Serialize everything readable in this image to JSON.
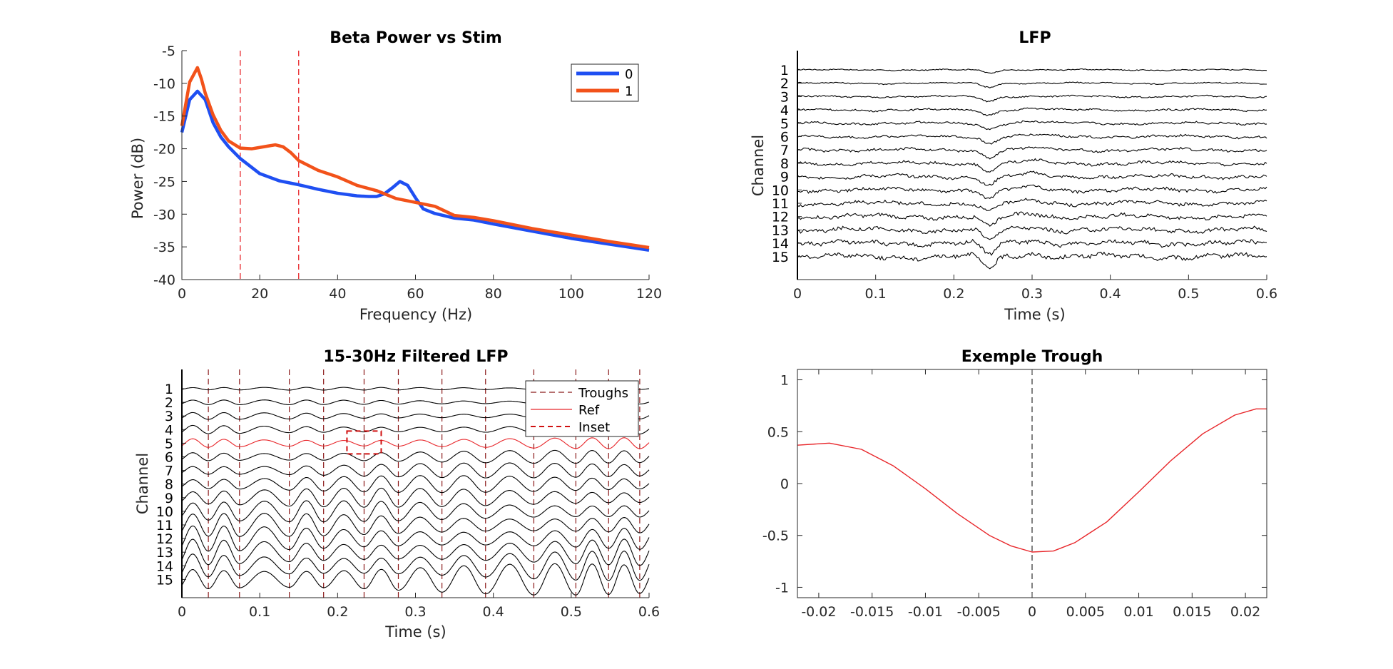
{
  "chart_data": [
    {
      "id": "psd",
      "type": "line",
      "title": "Beta Power vs Stim",
      "xlabel": "Frequency (Hz)",
      "ylabel": "Power (dB)",
      "xlim": [
        0,
        120
      ],
      "ylim": [
        -40,
        -5
      ],
      "xticks": [
        0,
        20,
        40,
        60,
        80,
        100,
        120
      ],
      "yticks": [
        -40,
        -35,
        -30,
        -25,
        -20,
        -15,
        -10,
        -5
      ],
      "grid": false,
      "legend_position": "top-right",
      "vlines": [
        15,
        30
      ],
      "vline_color": "#e8262a",
      "series": [
        {
          "name": "0",
          "color": "#1f4ff2",
          "x": [
            0,
            2,
            4,
            6,
            8,
            10,
            12,
            15,
            20,
            25,
            30,
            35,
            40,
            45,
            48,
            50,
            52,
            54,
            56,
            58,
            60,
            62,
            65,
            70,
            75,
            80,
            90,
            100,
            110,
            120
          ],
          "y": [
            -17.5,
            -12.5,
            -11.2,
            -12.5,
            -16,
            -18.2,
            -19.7,
            -21.5,
            -23.8,
            -24.9,
            -25.5,
            -26.2,
            -26.8,
            -27.2,
            -27.3,
            -27.3,
            -26.9,
            -26,
            -25,
            -25.6,
            -27.5,
            -29.2,
            -29.9,
            -30.6,
            -30.9,
            -31.5,
            -32.6,
            -33.7,
            -34.6,
            -35.5
          ]
        },
        {
          "name": "1",
          "color": "#f2521a",
          "x": [
            0,
            2,
            3,
            4,
            5,
            6,
            8,
            10,
            12,
            15,
            18,
            20,
            22,
            24,
            26,
            28,
            30,
            35,
            40,
            45,
            50,
            55,
            60,
            65,
            70,
            75,
            80,
            90,
            100,
            110,
            120
          ],
          "y": [
            -16.5,
            -9.8,
            -8.7,
            -7.6,
            -9.3,
            -11.5,
            -14.8,
            -17.2,
            -18.8,
            -19.9,
            -20,
            -19.8,
            -19.6,
            -19.4,
            -19.7,
            -20.6,
            -21.8,
            -23.3,
            -24.3,
            -25.6,
            -26.4,
            -27.6,
            -28.2,
            -28.8,
            -30.2,
            -30.5,
            -31,
            -32.2,
            -33.2,
            -34.2,
            -35.1
          ]
        }
      ]
    },
    {
      "id": "lfp",
      "type": "line",
      "title": "LFP",
      "xlabel": "Time (s)",
      "ylabel": "Channel",
      "xlim": [
        0,
        0.6
      ],
      "xticks": [
        0,
        0.1,
        0.2,
        0.3,
        0.4,
        0.5,
        0.6
      ],
      "channels": [
        "1",
        "2",
        "3",
        "4",
        "5",
        "6",
        "7",
        "8",
        "9",
        "10",
        "11",
        "12",
        "13",
        "14",
        "15"
      ],
      "trace_color": "#000000"
    },
    {
      "id": "filtered",
      "type": "line",
      "title": "15-30Hz Filtered LFP",
      "xlabel": "Time (s)",
      "ylabel": "Channel",
      "xlim": [
        0,
        0.6
      ],
      "xticks": [
        0,
        0.1,
        0.2,
        0.3,
        0.4,
        0.5,
        0.6
      ],
      "channels": [
        "1",
        "2",
        "3",
        "4",
        "5",
        "6",
        "7",
        "8",
        "9",
        "10",
        "11",
        "12",
        "13",
        "14",
        "15"
      ],
      "ref_channel": "5",
      "troughs": [
        0.034,
        0.074,
        0.138,
        0.182,
        0.234,
        0.278,
        0.334,
        0.39,
        0.452,
        0.506,
        0.548,
        0.588
      ],
      "inset_x": [
        0.212,
        0.256
      ],
      "legend_position": "top-right",
      "legend": [
        {
          "label": "Troughs",
          "style": "dashed-thin",
          "color": "#8b1a1a"
        },
        {
          "label": "Ref",
          "style": "solid",
          "color": "#e8262a"
        },
        {
          "label": "Inset",
          "style": "dashed-thick",
          "color": "#d01010"
        }
      ]
    },
    {
      "id": "trough",
      "type": "line",
      "title": "Exemple Trough",
      "xlim": [
        -0.022,
        0.022
      ],
      "ylim": [
        -1.1,
        1.1
      ],
      "xticks": [
        -0.02,
        -0.015,
        -0.01,
        -0.005,
        0,
        0.005,
        0.01,
        0.015,
        0.02
      ],
      "yticks": [
        -1,
        -0.5,
        0,
        0.5,
        1
      ],
      "vline": 0,
      "series": [
        {
          "color": "#e8262a",
          "x": [
            -0.022,
            -0.019,
            -0.016,
            -0.013,
            -0.01,
            -0.007,
            -0.004,
            -0.002,
            0,
            0.002,
            0.004,
            0.007,
            0.01,
            0.013,
            0.016,
            0.019,
            0.021,
            0.022
          ],
          "y": [
            0.37,
            0.39,
            0.33,
            0.17,
            -0.05,
            -0.29,
            -0.5,
            -0.6,
            -0.66,
            -0.65,
            -0.57,
            -0.37,
            -0.08,
            0.22,
            0.48,
            0.66,
            0.72,
            0.72
          ]
        }
      ]
    }
  ]
}
